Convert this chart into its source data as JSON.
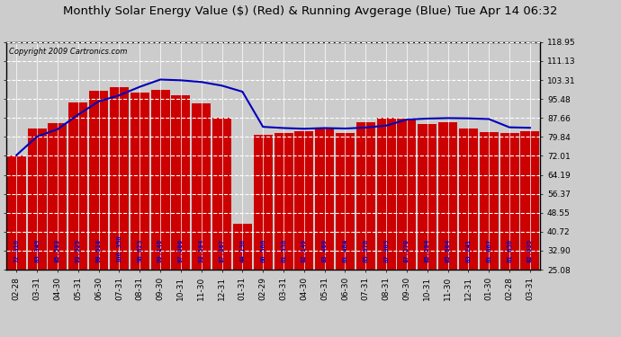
{
  "title": "Monthly Solar Energy Value ($) (Red) & Running Avgerage (Blue) Tue Apr 14 06:32",
  "copyright": "Copyright 2009 Cartronics.com",
  "categories": [
    "02-28",
    "03-31",
    "04-30",
    "05-31",
    "06-30",
    "07-31",
    "08-31",
    "09-30",
    "10-31",
    "11-30",
    "12-31",
    "01-31",
    "02-29",
    "03-31",
    "04-30",
    "05-31",
    "06-30",
    "07-31",
    "08-31",
    "09-30",
    "10-31",
    "11-30",
    "12-31",
    "01-30",
    "02-28",
    "03-31"
  ],
  "bar_values": [
    72.31,
    83.349,
    85.583,
    93.925,
    99.018,
    100.35,
    98.023,
    99.146,
    97.006,
    93.594,
    87.867,
    44.13,
    80.566,
    81.338,
    82.149,
    83.469,
    81.484,
    85.97,
    87.905,
    87.27,
    85.294,
    85.804,
    83.241,
    81.867,
    81.63,
    82.035
  ],
  "running_avg": [
    72.31,
    80.0,
    83.0,
    89.0,
    94.5,
    97.0,
    100.5,
    103.5,
    103.2,
    102.5,
    101.0,
    98.5,
    84.0,
    83.5,
    83.2,
    83.5,
    83.3,
    83.7,
    84.5,
    87.0,
    87.4,
    87.6,
    87.5,
    87.2,
    83.8,
    83.6
  ],
  "bar_color": "#cc0000",
  "line_color": "#0000bb",
  "bg_color": "#cccccc",
  "plot_bg_color": "#cccccc",
  "grid_color": "white",
  "yticks": [
    25.08,
    32.9,
    40.72,
    48.55,
    56.37,
    64.19,
    72.01,
    79.84,
    87.66,
    95.48,
    103.31,
    111.13,
    118.95
  ],
  "ymin": 25.08,
  "ymax": 118.95,
  "label_color": "#0000cc",
  "title_fontsize": 9.5,
  "tick_fontsize": 6.5,
  "value_fontsize": 5.2,
  "copyright_fontsize": 6
}
